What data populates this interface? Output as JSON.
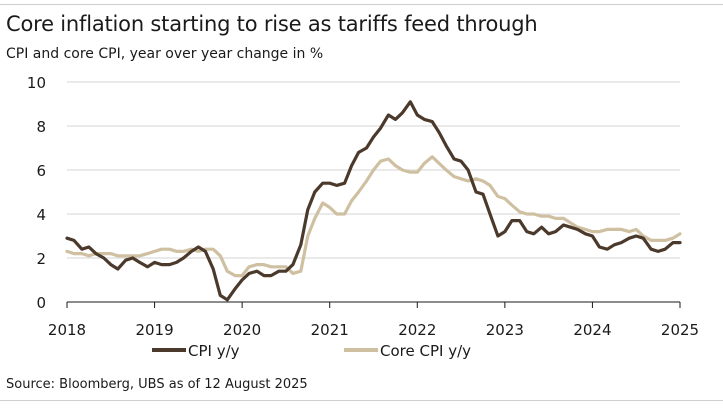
{
  "chart_data": {
    "type": "line",
    "title": "Core inflation starting to rise as tariffs feed through",
    "subtitle": "CPI and core CPI, year over year change in %",
    "source": "Source: Bloomberg, UBS as of 12 August 2025",
    "x_ticks": [
      "2018",
      "2019",
      "2020",
      "2021",
      "2022",
      "2023",
      "2024",
      "2025"
    ],
    "y_ticks": [
      "0",
      "2",
      "4",
      "6",
      "8",
      "10"
    ],
    "ylim": [
      0,
      10
    ],
    "xlim": [
      2018.0,
      2025.0
    ],
    "grid": "horizontal",
    "legend_position": "bottom-center",
    "series": [
      {
        "name": "CPI y/y",
        "color": "#4b3a2c",
        "x": [
          2018.0,
          2018.08,
          2018.17,
          2018.25,
          2018.33,
          2018.42,
          2018.5,
          2018.58,
          2018.67,
          2018.75,
          2018.83,
          2018.92,
          2019.0,
          2019.08,
          2019.17,
          2019.25,
          2019.33,
          2019.42,
          2019.5,
          2019.58,
          2019.67,
          2019.75,
          2019.83,
          2019.92,
          2020.0,
          2020.08,
          2020.17,
          2020.25,
          2020.33,
          2020.42,
          2020.5,
          2020.58,
          2020.67,
          2020.75,
          2020.83,
          2020.92,
          2021.0,
          2021.08,
          2021.17,
          2021.25,
          2021.33,
          2021.42,
          2021.5,
          2021.58,
          2021.67,
          2021.75,
          2021.83,
          2021.92,
          2022.0,
          2022.08,
          2022.17,
          2022.25,
          2022.33,
          2022.42,
          2022.5,
          2022.58,
          2022.67,
          2022.75,
          2022.83,
          2022.92,
          2023.0,
          2023.08,
          2023.17,
          2023.25,
          2023.33,
          2023.42,
          2023.5,
          2023.58,
          2023.67,
          2023.75,
          2023.83,
          2023.92,
          2024.0,
          2024.08,
          2024.17,
          2024.25,
          2024.33,
          2024.42,
          2024.5,
          2024.58,
          2024.67,
          2024.75,
          2024.83,
          2024.92,
          2025.0
        ],
        "values": [
          2.9,
          2.8,
          2.4,
          2.5,
          2.2,
          2.0,
          1.7,
          1.5,
          1.9,
          2.0,
          1.8,
          1.6,
          1.8,
          1.7,
          1.7,
          1.8,
          2.0,
          2.3,
          2.5,
          2.3,
          1.5,
          0.3,
          0.1,
          0.6,
          1.0,
          1.3,
          1.4,
          1.2,
          1.2,
          1.4,
          1.4,
          1.7,
          2.6,
          4.2,
          5.0,
          5.4,
          5.4,
          5.3,
          5.4,
          6.2,
          6.8,
          7.0,
          7.5,
          7.9,
          8.5,
          8.3,
          8.6,
          9.1,
          8.5,
          8.3,
          8.2,
          7.7,
          7.1,
          6.5,
          6.4,
          6.0,
          5.0,
          4.9,
          4.0,
          3.0,
          3.2,
          3.7,
          3.7,
          3.2,
          3.1,
          3.4,
          3.1,
          3.2,
          3.5,
          3.4,
          3.3,
          3.1,
          3.0,
          2.5,
          2.4,
          2.6,
          2.7,
          2.9,
          3.0,
          2.9,
          2.4,
          2.3,
          2.4,
          2.7,
          2.7
        ]
      },
      {
        "name": "Core CPI y/y",
        "color": "#cfc0a2",
        "x": [
          2018.0,
          2018.08,
          2018.17,
          2018.25,
          2018.33,
          2018.42,
          2018.5,
          2018.58,
          2018.67,
          2018.75,
          2018.83,
          2018.92,
          2019.0,
          2019.08,
          2019.17,
          2019.25,
          2019.33,
          2019.42,
          2019.5,
          2019.58,
          2019.67,
          2019.75,
          2019.83,
          2019.92,
          2020.0,
          2020.08,
          2020.17,
          2020.25,
          2020.33,
          2020.42,
          2020.5,
          2020.58,
          2020.67,
          2020.75,
          2020.83,
          2020.92,
          2021.0,
          2021.08,
          2021.17,
          2021.25,
          2021.33,
          2021.42,
          2021.5,
          2021.58,
          2021.67,
          2021.75,
          2021.83,
          2021.92,
          2022.0,
          2022.08,
          2022.17,
          2022.25,
          2022.33,
          2022.42,
          2022.5,
          2022.58,
          2022.67,
          2022.75,
          2022.83,
          2022.92,
          2023.0,
          2023.08,
          2023.17,
          2023.25,
          2023.33,
          2023.42,
          2023.5,
          2023.58,
          2023.67,
          2023.75,
          2023.83,
          2023.92,
          2024.0,
          2024.08,
          2024.17,
          2024.25,
          2024.33,
          2024.42,
          2024.5,
          2024.58,
          2024.67,
          2024.75,
          2024.83,
          2024.92,
          2025.0
        ],
        "values": [
          2.3,
          2.2,
          2.2,
          2.1,
          2.2,
          2.2,
          2.2,
          2.1,
          2.1,
          2.1,
          2.1,
          2.2,
          2.3,
          2.4,
          2.4,
          2.3,
          2.3,
          2.4,
          2.3,
          2.4,
          2.4,
          2.1,
          1.4,
          1.2,
          1.2,
          1.6,
          1.7,
          1.7,
          1.6,
          1.6,
          1.6,
          1.3,
          1.4,
          3.0,
          3.8,
          4.5,
          4.3,
          4.0,
          4.0,
          4.6,
          5.0,
          5.5,
          6.0,
          6.4,
          6.5,
          6.2,
          6.0,
          5.9,
          5.9,
          6.3,
          6.6,
          6.3,
          6.0,
          5.7,
          5.6,
          5.5,
          5.6,
          5.5,
          5.3,
          4.8,
          4.7,
          4.4,
          4.1,
          4.0,
          4.0,
          3.9,
          3.9,
          3.8,
          3.8,
          3.6,
          3.4,
          3.3,
          3.2,
          3.2,
          3.3,
          3.3,
          3.3,
          3.2,
          3.3,
          3.0,
          2.8,
          2.8,
          2.8,
          2.9,
          3.1
        ]
      }
    ]
  }
}
